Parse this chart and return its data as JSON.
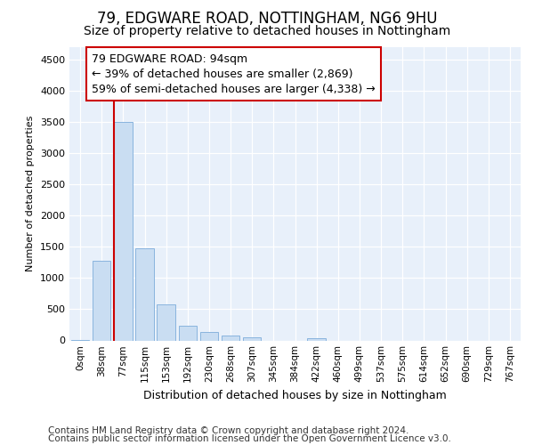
{
  "title1": "79, EDGWARE ROAD, NOTTINGHAM, NG6 9HU",
  "title2": "Size of property relative to detached houses in Nottingham",
  "xlabel": "Distribution of detached houses by size in Nottingham",
  "ylabel": "Number of detached properties",
  "bar_labels": [
    "0sqm",
    "38sqm",
    "77sqm",
    "115sqm",
    "153sqm",
    "192sqm",
    "230sqm",
    "268sqm",
    "307sqm",
    "345sqm",
    "384sqm",
    "422sqm",
    "460sqm",
    "499sqm",
    "537sqm",
    "575sqm",
    "614sqm",
    "652sqm",
    "690sqm",
    "729sqm",
    "767sqm"
  ],
  "bar_values": [
    8,
    1280,
    3500,
    1470,
    580,
    240,
    140,
    85,
    50,
    0,
    0,
    40,
    0,
    0,
    0,
    0,
    0,
    0,
    0,
    0,
    0
  ],
  "bar_color": "#c9ddf2",
  "bar_edge_color": "#89b4de",
  "vline_x_idx": 2,
  "vline_color": "#cc0000",
  "annotation_text": "79 EDGWARE ROAD: 94sqm\n← 39% of detached houses are smaller (2,869)\n59% of semi-detached houses are larger (4,338) →",
  "annotation_box_color": "#ffffff",
  "annotation_edge_color": "#cc0000",
  "ylim": [
    0,
    4700
  ],
  "yticks": [
    0,
    500,
    1000,
    1500,
    2000,
    2500,
    3000,
    3500,
    4000,
    4500
  ],
  "footnote1": "Contains HM Land Registry data © Crown copyright and database right 2024.",
  "footnote2": "Contains public sector information licensed under the Open Government Licence v3.0.",
  "plot_bg_color": "#e8f0fa",
  "title1_fontsize": 12,
  "title2_fontsize": 10,
  "annotation_fontsize": 9,
  "footnote_fontsize": 7.5,
  "ylabel_fontsize": 8,
  "xlabel_fontsize": 9,
  "ytick_fontsize": 8,
  "xtick_fontsize": 7.5
}
